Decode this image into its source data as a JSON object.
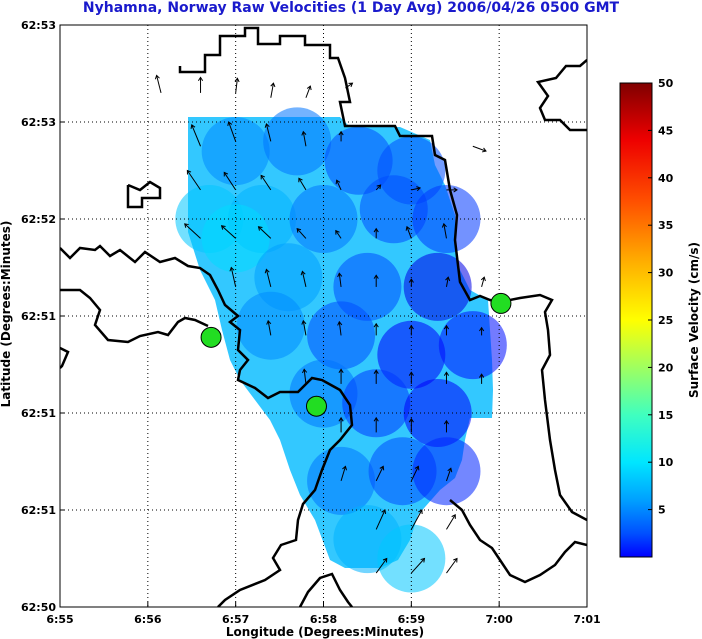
{
  "chart_data": {
    "type": "heatmap",
    "title": "Nyhamna, Norway Raw Velocities (1 Day Avg) 2006/04/26 0500 GMT",
    "xlabel": "Longitude (Degrees:Minutes)",
    "ylabel": "Latitude (Degrees:Minutes)",
    "x_ticks": [
      "6:55",
      "6:56",
      "6:57",
      "6:58",
      "6:59",
      "7:00",
      "7:01"
    ],
    "y_ticks": [
      "62:53",
      "62:53",
      "62:52",
      "62:51",
      "62:51",
      "62:51",
      "62:50"
    ],
    "grid": true,
    "colorbar": {
      "label": "Surface Velocity (cm/s)",
      "ticks": [
        "5",
        "10",
        "15",
        "20",
        "25",
        "30",
        "35",
        "40",
        "45",
        "50"
      ],
      "min": 0,
      "max": 50
    },
    "stations": [
      {
        "x": 1.72,
        "y": 2.78
      },
      {
        "x": 2.92,
        "y": 2.07
      },
      {
        "x": 5.02,
        "y": 3.13
      }
    ],
    "speed_field": [
      {
        "x": 2.0,
        "y": 4.7,
        "v": 13
      },
      {
        "x": 2.7,
        "y": 4.8,
        "v": 12
      },
      {
        "x": 3.4,
        "y": 4.6,
        "v": 10
      },
      {
        "x": 4.0,
        "y": 4.5,
        "v": 10
      },
      {
        "x": 1.7,
        "y": 4.0,
        "v": 16
      },
      {
        "x": 2.3,
        "y": 4.0,
        "v": 15
      },
      {
        "x": 3.0,
        "y": 4.0,
        "v": 12
      },
      {
        "x": 3.8,
        "y": 4.1,
        "v": 10
      },
      {
        "x": 4.4,
        "y": 4.0,
        "v": 9
      },
      {
        "x": 2.0,
        "y": 3.8,
        "v": 17
      },
      {
        "x": 2.6,
        "y": 3.4,
        "v": 14
      },
      {
        "x": 3.5,
        "y": 3.3,
        "v": 10
      },
      {
        "x": 4.3,
        "y": 3.3,
        "v": 5
      },
      {
        "x": 2.4,
        "y": 2.9,
        "v": 13
      },
      {
        "x": 3.2,
        "y": 2.8,
        "v": 10
      },
      {
        "x": 4.0,
        "y": 2.6,
        "v": 6
      },
      {
        "x": 4.7,
        "y": 2.7,
        "v": 7
      },
      {
        "x": 3.0,
        "y": 2.2,
        "v": 12
      },
      {
        "x": 3.6,
        "y": 2.1,
        "v": 9
      },
      {
        "x": 4.3,
        "y": 2.0,
        "v": 6
      },
      {
        "x": 3.2,
        "y": 1.3,
        "v": 12
      },
      {
        "x": 3.9,
        "y": 1.4,
        "v": 10
      },
      {
        "x": 4.4,
        "y": 1.4,
        "v": 8
      },
      {
        "x": 3.5,
        "y": 0.7,
        "v": 15
      },
      {
        "x": 4.0,
        "y": 0.5,
        "v": 16
      }
    ],
    "vectors": [
      {
        "x": 1.15,
        "y": 5.3,
        "u": -0.05,
        "w": 0.18
      },
      {
        "x": 1.6,
        "y": 5.3,
        "u": 0.0,
        "w": 0.16
      },
      {
        "x": 2.0,
        "y": 5.3,
        "u": 0.02,
        "w": 0.15
      },
      {
        "x": 2.4,
        "y": 5.25,
        "u": 0.03,
        "w": 0.15
      },
      {
        "x": 2.8,
        "y": 5.25,
        "u": 0.05,
        "w": 0.12
      },
      {
        "x": 3.25,
        "y": 5.35,
        "u": 0.08,
        "w": 0.05
      },
      {
        "x": 1.6,
        "y": 4.75,
        "u": -0.1,
        "w": 0.22
      },
      {
        "x": 2.0,
        "y": 4.8,
        "u": -0.08,
        "w": 0.2
      },
      {
        "x": 2.4,
        "y": 4.8,
        "u": -0.05,
        "w": 0.18
      },
      {
        "x": 2.8,
        "y": 4.75,
        "u": -0.03,
        "w": 0.15
      },
      {
        "x": 3.2,
        "y": 4.8,
        "u": 0.0,
        "w": 0.1
      },
      {
        "x": 4.7,
        "y": 4.75,
        "u": 0.15,
        "w": -0.05
      },
      {
        "x": 1.6,
        "y": 4.3,
        "u": -0.15,
        "w": 0.2
      },
      {
        "x": 2.0,
        "y": 4.3,
        "u": -0.13,
        "w": 0.18
      },
      {
        "x": 2.4,
        "y": 4.3,
        "u": -0.11,
        "w": 0.15
      },
      {
        "x": 2.8,
        "y": 4.3,
        "u": -0.08,
        "w": 0.12
      },
      {
        "x": 3.2,
        "y": 4.3,
        "u": -0.05,
        "w": 0.1
      },
      {
        "x": 3.6,
        "y": 4.3,
        "u": 0.05,
        "w": 0.05
      },
      {
        "x": 4.0,
        "y": 4.3,
        "u": 0.1,
        "w": 0.02
      },
      {
        "x": 4.4,
        "y": 4.3,
        "u": 0.12,
        "w": 0.0
      },
      {
        "x": 1.6,
        "y": 3.8,
        "u": -0.18,
        "w": 0.15
      },
      {
        "x": 2.0,
        "y": 3.8,
        "u": -0.16,
        "w": 0.13
      },
      {
        "x": 2.4,
        "y": 3.8,
        "u": -0.14,
        "w": 0.12
      },
      {
        "x": 2.8,
        "y": 3.8,
        "u": -0.1,
        "w": 0.1
      },
      {
        "x": 3.2,
        "y": 3.8,
        "u": -0.06,
        "w": 0.08
      },
      {
        "x": 3.6,
        "y": 3.8,
        "u": 0.0,
        "w": 0.1
      },
      {
        "x": 4.0,
        "y": 3.8,
        "u": -0.05,
        "w": 0.12
      },
      {
        "x": 4.4,
        "y": 3.8,
        "u": -0.03,
        "w": 0.15
      },
      {
        "x": 2.0,
        "y": 3.3,
        "u": -0.05,
        "w": 0.2
      },
      {
        "x": 2.4,
        "y": 3.3,
        "u": -0.05,
        "w": 0.18
      },
      {
        "x": 2.8,
        "y": 3.3,
        "u": -0.04,
        "w": 0.16
      },
      {
        "x": 3.2,
        "y": 3.3,
        "u": -0.02,
        "w": 0.14
      },
      {
        "x": 3.6,
        "y": 3.3,
        "u": 0.0,
        "w": 0.12
      },
      {
        "x": 4.0,
        "y": 3.3,
        "u": 0.0,
        "w": 0.08
      },
      {
        "x": 4.4,
        "y": 3.3,
        "u": 0.02,
        "w": 0.1
      },
      {
        "x": 4.8,
        "y": 3.3,
        "u": 0.03,
        "w": 0.1
      },
      {
        "x": 2.4,
        "y": 2.8,
        "u": -0.03,
        "w": 0.15
      },
      {
        "x": 2.8,
        "y": 2.8,
        "u": -0.03,
        "w": 0.15
      },
      {
        "x": 3.2,
        "y": 2.8,
        "u": -0.02,
        "w": 0.14
      },
      {
        "x": 3.6,
        "y": 2.8,
        "u": 0.0,
        "w": 0.12
      },
      {
        "x": 4.0,
        "y": 2.8,
        "u": 0.0,
        "w": 0.1
      },
      {
        "x": 4.4,
        "y": 2.8,
        "u": 0.0,
        "w": 0.1
      },
      {
        "x": 4.8,
        "y": 2.8,
        "u": 0.0,
        "w": 0.08
      },
      {
        "x": 2.8,
        "y": 2.3,
        "u": -0.02,
        "w": 0.15
      },
      {
        "x": 3.2,
        "y": 2.3,
        "u": 0.0,
        "w": 0.15
      },
      {
        "x": 3.6,
        "y": 2.3,
        "u": 0.0,
        "w": 0.14
      },
      {
        "x": 4.0,
        "y": 2.3,
        "u": 0.0,
        "w": 0.12
      },
      {
        "x": 4.4,
        "y": 2.3,
        "u": 0.0,
        "w": 0.12
      },
      {
        "x": 4.8,
        "y": 2.3,
        "u": 0.0,
        "w": 0.1
      },
      {
        "x": 3.2,
        "y": 1.8,
        "u": 0.0,
        "w": 0.15
      },
      {
        "x": 3.6,
        "y": 1.8,
        "u": 0.0,
        "w": 0.15
      },
      {
        "x": 4.0,
        "y": 1.8,
        "u": 0.0,
        "w": 0.14
      },
      {
        "x": 4.4,
        "y": 1.8,
        "u": 0.0,
        "w": 0.12
      },
      {
        "x": 3.2,
        "y": 1.3,
        "u": 0.05,
        "w": 0.15
      },
      {
        "x": 3.6,
        "y": 1.3,
        "u": 0.08,
        "w": 0.15
      },
      {
        "x": 4.0,
        "y": 1.3,
        "u": 0.08,
        "w": 0.15
      },
      {
        "x": 4.4,
        "y": 1.3,
        "u": 0.05,
        "w": 0.13
      },
      {
        "x": 3.6,
        "y": 0.8,
        "u": 0.1,
        "w": 0.2
      },
      {
        "x": 4.0,
        "y": 0.8,
        "u": 0.12,
        "w": 0.2
      },
      {
        "x": 4.4,
        "y": 0.8,
        "u": 0.1,
        "w": 0.15
      },
      {
        "x": 3.6,
        "y": 0.35,
        "u": 0.12,
        "w": 0.15
      },
      {
        "x": 4.0,
        "y": 0.35,
        "u": 0.15,
        "w": 0.15
      },
      {
        "x": 4.4,
        "y": 0.35,
        "u": 0.12,
        "w": 0.15
      }
    ]
  }
}
